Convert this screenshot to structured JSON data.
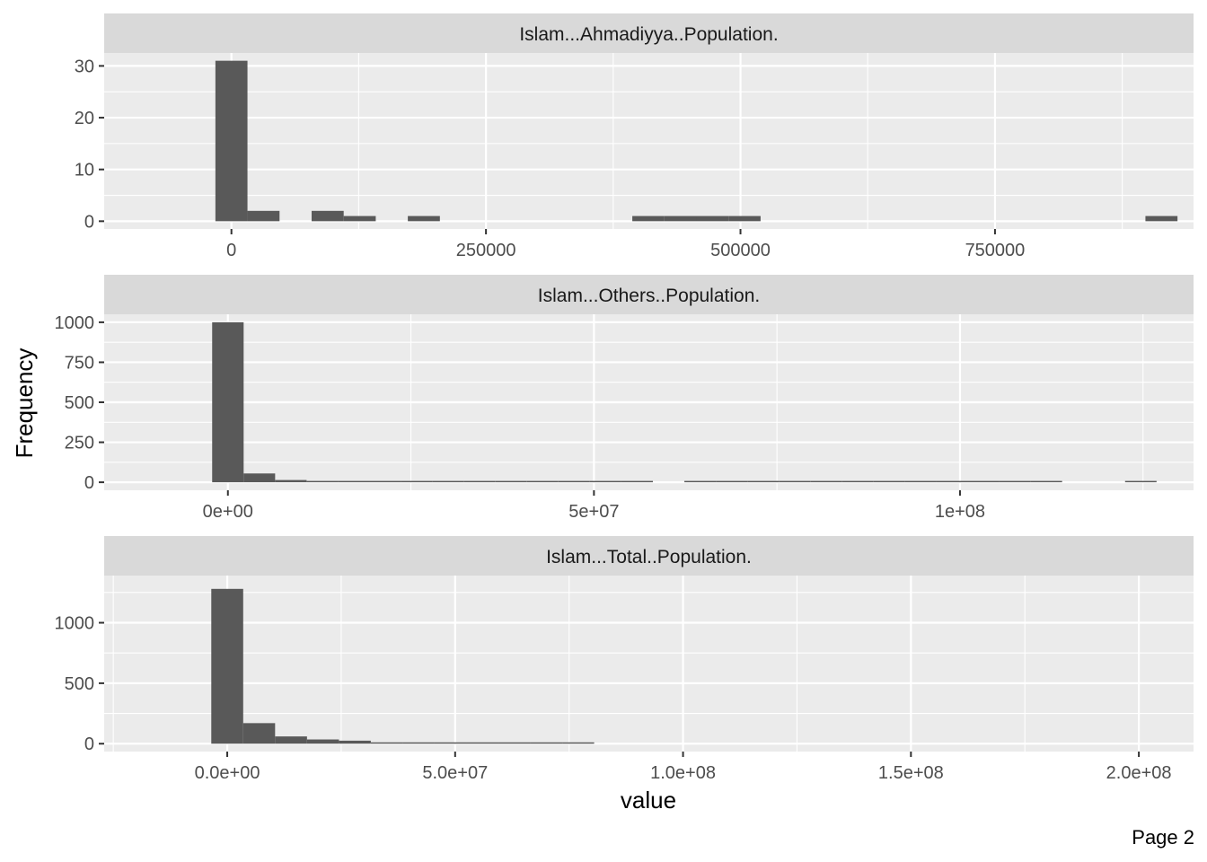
{
  "page_label": "Page 2",
  "colors": {
    "panel_bg": "#ebebeb",
    "strip_bg": "#d9d9d9",
    "grid": "#ffffff",
    "bar": "#595959",
    "tick": "#333333"
  },
  "chart_data": {
    "type": "bar",
    "subtype": "faceted-histogram",
    "xlabel": "value",
    "ylabel": "Frequency",
    "grid": true,
    "facet_scales": "free",
    "panels": [
      {
        "title": "Islam...Ahmadiyya..Population.",
        "bin_width": 31500,
        "x_range": [
          -125000,
          945000
        ],
        "y_range": [
          -1.5,
          32.5
        ],
        "x_ticks": [
          0,
          250000,
          500000,
          750000
        ],
        "x_tick_labels": [
          "0",
          "250000",
          "500000",
          "750000"
        ],
        "y_ticks": [
          0,
          10,
          20,
          30
        ],
        "y_tick_labels": [
          "0",
          "10",
          "20",
          "30"
        ],
        "bins": [
          {
            "x": 0,
            "count": 31
          },
          {
            "x": 31500,
            "count": 2
          },
          {
            "x": 94500,
            "count": 2
          },
          {
            "x": 126000,
            "count": 1
          },
          {
            "x": 189000,
            "count": 1
          },
          {
            "x": 409500,
            "count": 1
          },
          {
            "x": 441000,
            "count": 1
          },
          {
            "x": 472500,
            "count": 1
          },
          {
            "x": 504000,
            "count": 1
          },
          {
            "x": 913500,
            "count": 1
          }
        ]
      },
      {
        "title": "Islam...Others..Population.",
        "bin_width": 4300000,
        "x_range": [
          -16900000,
          131900000
        ],
        "y_range": [
          -50,
          1050
        ],
        "x_ticks": [
          0,
          50000000,
          100000000
        ],
        "x_tick_labels": [
          "0e+00",
          "5e+07",
          "1e+08"
        ],
        "y_ticks": [
          0,
          250,
          500,
          750,
          1000
        ],
        "y_tick_labels": [
          "0",
          "250",
          "500",
          "750",
          "1000"
        ],
        "bins": [
          {
            "x": 0,
            "count": 1000
          },
          {
            "x": 4300000,
            "count": 55
          },
          {
            "x": 8600000,
            "count": 14
          },
          {
            "x": 12900000,
            "count": 8
          },
          {
            "x": 17200000,
            "count": 6
          },
          {
            "x": 21500000,
            "count": 4
          },
          {
            "x": 25800000,
            "count": 3
          },
          {
            "x": 30100000,
            "count": 5
          },
          {
            "x": 34400000,
            "count": 2
          },
          {
            "x": 38700000,
            "count": 2
          },
          {
            "x": 43000000,
            "count": 1
          },
          {
            "x": 47300000,
            "count": 1
          },
          {
            "x": 51600000,
            "count": 1
          },
          {
            "x": 55900000,
            "count": 1
          },
          {
            "x": 64500000,
            "count": 1
          },
          {
            "x": 68800000,
            "count": 1
          },
          {
            "x": 73100000,
            "count": 1
          },
          {
            "x": 77400000,
            "count": 1
          },
          {
            "x": 81700000,
            "count": 1
          },
          {
            "x": 86000000,
            "count": 1
          },
          {
            "x": 90300000,
            "count": 1
          },
          {
            "x": 94600000,
            "count": 1
          },
          {
            "x": 98900000,
            "count": 1
          },
          {
            "x": 103200000,
            "count": 1
          },
          {
            "x": 107500000,
            "count": 1
          },
          {
            "x": 111800000,
            "count": 1
          },
          {
            "x": 124700000,
            "count": 1
          }
        ]
      },
      {
        "title": "Islam...Total..Population.",
        "bin_width": 7000000,
        "x_range": [
          -27000000,
          212000000
        ],
        "y_range": [
          -65,
          1390
        ],
        "x_ticks": [
          0,
          50000000,
          100000000,
          150000000,
          200000000
        ],
        "x_tick_labels": [
          "0.0e+00",
          "5.0e+07",
          "1.0e+08",
          "1.5e+08",
          "2.0e+08"
        ],
        "y_ticks": [
          0,
          500,
          1000
        ],
        "y_tick_labels": [
          "0",
          "500",
          "1000"
        ],
        "bins": [
          {
            "x": 0,
            "count": 1280
          },
          {
            "x": 7000000,
            "count": 170
          },
          {
            "x": 14000000,
            "count": 60
          },
          {
            "x": 21000000,
            "count": 35
          },
          {
            "x": 28000000,
            "count": 25
          },
          {
            "x": 35000000,
            "count": 8
          },
          {
            "x": 42000000,
            "count": 5
          },
          {
            "x": 49000000,
            "count": 4
          },
          {
            "x": 56000000,
            "count": 3
          },
          {
            "x": 63000000,
            "count": 3
          },
          {
            "x": 70000000,
            "count": 3
          },
          {
            "x": 77000000,
            "count": 2
          }
        ]
      }
    ]
  }
}
